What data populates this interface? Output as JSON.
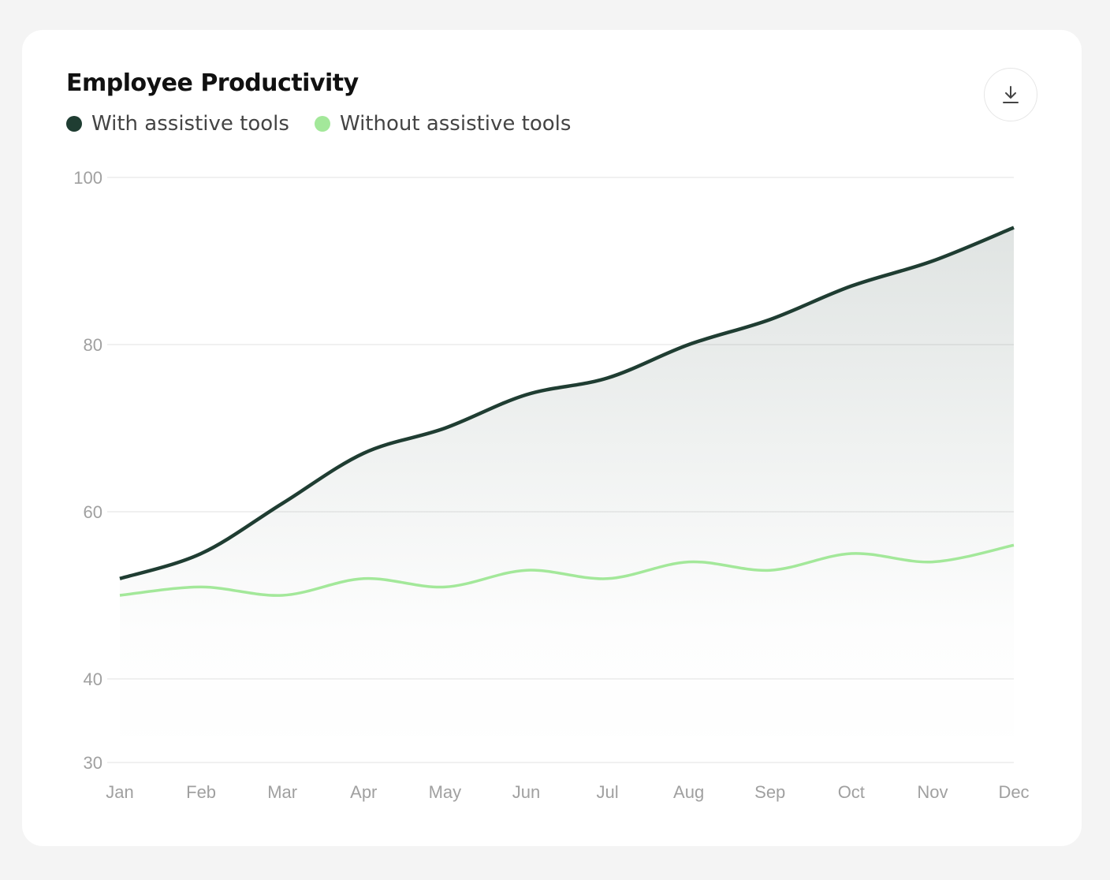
{
  "chart_data": {
    "type": "area",
    "title": "Employee Productivity",
    "categories": [
      "Jan",
      "Feb",
      "Mar",
      "Apr",
      "May",
      "Jun",
      "Jul",
      "Aug",
      "Sep",
      "Oct",
      "Nov",
      "Dec"
    ],
    "series": [
      {
        "name": "With assistive tools",
        "color": "#1f3d32",
        "values": [
          52,
          55,
          61,
          67,
          70,
          74,
          76,
          80,
          83,
          87,
          90,
          94
        ]
      },
      {
        "name": "Without assistive tools",
        "color": "#a3e89a",
        "values": [
          50,
          51,
          50,
          52,
          51,
          53,
          52,
          54,
          53,
          55,
          54,
          56
        ]
      }
    ],
    "yticks": [
      30,
      40,
      60,
      80,
      100
    ],
    "ylim": [
      30,
      100
    ],
    "grid": true,
    "legend_position": "top-left",
    "xlabel": "",
    "ylabel": ""
  },
  "toolbar": {
    "download_icon": "download-icon"
  }
}
